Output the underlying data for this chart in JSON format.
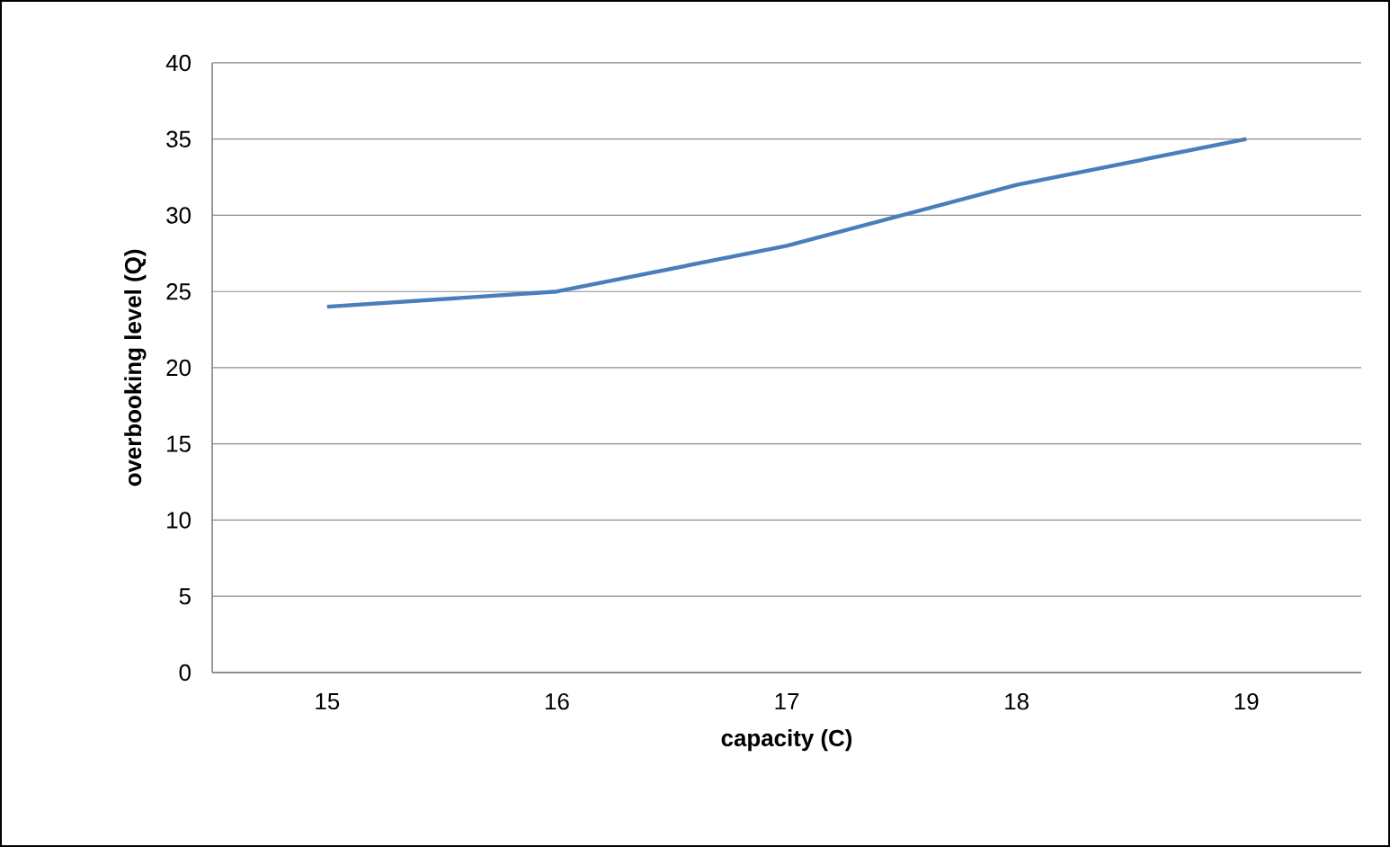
{
  "chart_data": {
    "type": "line",
    "xlabel": "capacity (C)",
    "ylabel": "overbooking level (Q)",
    "categories": [
      "15",
      "16",
      "17",
      "18",
      "19"
    ],
    "series": [
      {
        "color": "#4a7ebb",
        "values": [
          24,
          25,
          28,
          32,
          35
        ]
      }
    ],
    "ylim": [
      0,
      40
    ],
    "yticks": [
      0,
      5,
      10,
      15,
      20,
      25,
      30,
      35,
      40
    ],
    "grid": "y",
    "marker": "none",
    "line_style": "solid"
  }
}
